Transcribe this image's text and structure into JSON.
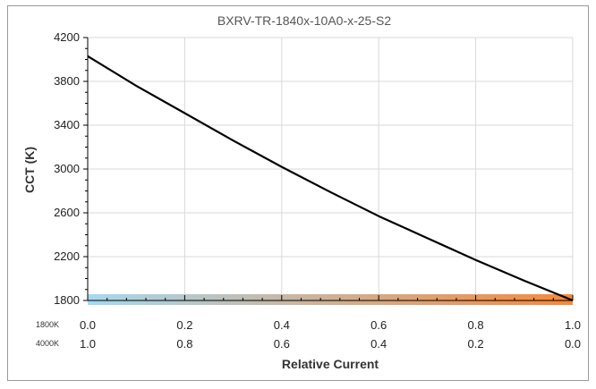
{
  "chart_data": {
    "type": "line",
    "title": "BXRV-TR-1840x-10A0-x-25-S2",
    "xlabel": "Relative Current",
    "ylabel": "CCT (K)",
    "xlim": [
      0,
      1
    ],
    "ylim": [
      1800,
      4200
    ],
    "yticks": [
      "1800",
      "2200",
      "2600",
      "3000",
      "3400",
      "3800",
      "4200"
    ],
    "xticks_top": [
      "0.0",
      "0.2",
      "0.4",
      "0.6",
      "0.8",
      "1.0"
    ],
    "xticks_bottom": [
      "1.0",
      "0.8",
      "0.6",
      "0.4",
      "0.2",
      "0.0"
    ],
    "row_labels": [
      "1800K",
      "4000K"
    ],
    "gradient_colors": [
      "#a6d8f0",
      "#f7883a"
    ],
    "line_color": "#000000",
    "grid": true,
    "series": [
      {
        "x": [
          0.0,
          0.1,
          0.2,
          0.3,
          0.4,
          0.5,
          0.6,
          0.7,
          0.8,
          0.9,
          1.0
        ],
        "values": [
          4030,
          3760,
          3510,
          3260,
          3020,
          2790,
          2570,
          2370,
          2170,
          1980,
          1800
        ]
      }
    ]
  }
}
